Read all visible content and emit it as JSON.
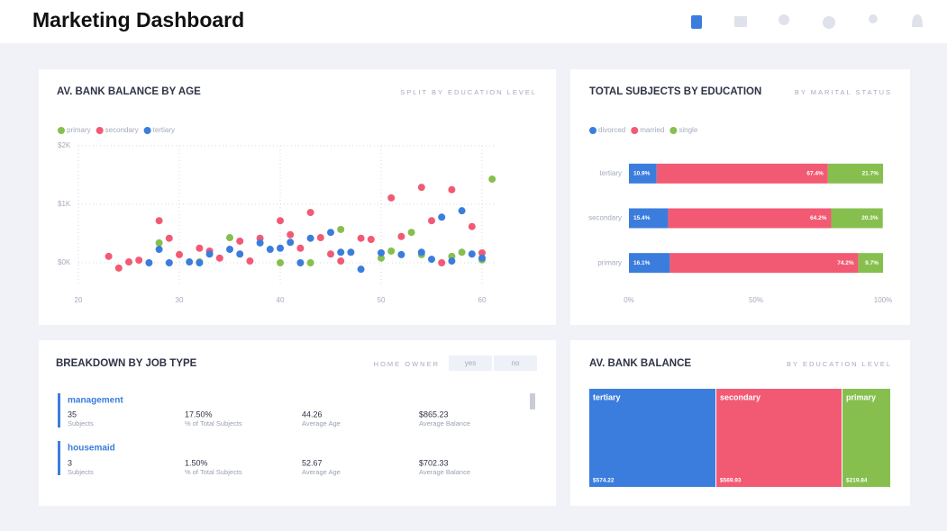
{
  "header": {
    "title": "Marketing Dashboard"
  },
  "chart_data": [
    {
      "type": "scatter",
      "title": "AV. BANK BALANCE BY AGE",
      "subtitle": "SPLIT BY EDUCATION LEVEL",
      "xlim": [
        20,
        62
      ],
      "xticks": [
        20,
        30,
        40,
        50,
        60
      ],
      "ylim": [
        -400,
        2000
      ],
      "yticks": [
        {
          "value": 0,
          "label": "$0K"
        },
        {
          "value": 1000,
          "label": "$1K"
        },
        {
          "value": 2000,
          "label": "$2K"
        }
      ],
      "grid": true,
      "legend": "top-left",
      "series": [
        {
          "name": "primary",
          "color": "#86bf4e",
          "x": [
            28,
            32,
            35,
            40,
            43,
            46,
            50,
            51,
            53,
            54,
            57,
            58,
            60,
            61
          ],
          "values": [
            340,
            15,
            430,
            0,
            0,
            570,
            80,
            200,
            520,
            140,
            110,
            180,
            50,
            1430
          ]
        },
        {
          "name": "secondary",
          "color": "#f25a74",
          "x": [
            23,
            24,
            25,
            26,
            28,
            29,
            30,
            32,
            33,
            34,
            36,
            37,
            38,
            40,
            41,
            42,
            43,
            44,
            45,
            46,
            48,
            49,
            51,
            52,
            54,
            55,
            56,
            57,
            59,
            60
          ],
          "values": [
            110,
            -90,
            15,
            45,
            720,
            420,
            140,
            250,
            200,
            80,
            370,
            30,
            420,
            720,
            480,
            250,
            860,
            430,
            150,
            30,
            420,
            400,
            1110,
            450,
            1290,
            720,
            0,
            1250,
            620,
            170
          ]
        },
        {
          "name": "tertiary",
          "color": "#3b7ddd",
          "x": [
            27,
            28,
            29,
            31,
            32,
            33,
            35,
            36,
            38,
            39,
            40,
            41,
            42,
            43,
            45,
            46,
            47,
            48,
            50,
            52,
            54,
            55,
            56,
            57,
            58,
            59,
            60
          ],
          "values": [
            0,
            230,
            0,
            15,
            0,
            150,
            230,
            150,
            340,
            230,
            250,
            350,
            0,
            420,
            520,
            180,
            180,
            -110,
            170,
            140,
            180,
            60,
            780,
            30,
            890,
            150,
            80
          ]
        }
      ]
    },
    {
      "type": "bar",
      "orientation": "horizontal",
      "stacked": true,
      "title": "TOTAL SUBJECTS BY EDUCATION",
      "subtitle": "BY MARITAL STATUS",
      "categories": [
        "tertiary",
        "secondary",
        "primary"
      ],
      "xlim": [
        0,
        100
      ],
      "xticks": [
        {
          "value": 0,
          "label": "0%"
        },
        {
          "value": 50,
          "label": "50%"
        },
        {
          "value": 100,
          "label": "100%"
        }
      ],
      "legend": "top-left",
      "series": [
        {
          "name": "divorced",
          "color": "#3b7ddd",
          "values": [
            10.9,
            15.4,
            16.1
          ],
          "value_labels": [
            "10.9%",
            "15.4%",
            "16.1%"
          ]
        },
        {
          "name": "married",
          "color": "#f25a74",
          "values": [
            67.4,
            64.2,
            74.2
          ],
          "value_labels": [
            "67.4%",
            "64.2%",
            "74.2%"
          ]
        },
        {
          "name": "single",
          "color": "#86bf4e",
          "values": [
            21.7,
            20.3,
            9.7
          ],
          "value_labels": [
            "21.7%",
            "20.3%",
            "9.7%"
          ]
        }
      ]
    },
    {
      "type": "treemap",
      "title": "AV. BANK BALANCE",
      "subtitle": "BY EDUCATION LEVEL",
      "categories": [
        "tertiary",
        "secondary",
        "primary"
      ],
      "values": [
        574.22,
        569.93,
        219.84
      ],
      "value_labels": [
        "$574.22",
        "$569.93",
        "$219.84"
      ],
      "colors": [
        "#3b7ddd",
        "#f25a74",
        "#86bf4e"
      ]
    }
  ],
  "job_panel": {
    "title": "BREAKDOWN BY JOB TYPE",
    "filter_label": "HOME OWNER",
    "filter_options": [
      "yes",
      "no"
    ],
    "items": [
      {
        "name": "management",
        "stats": [
          {
            "value": "35",
            "label": "Subjects"
          },
          {
            "value": "17.50%",
            "label": "% of Total Subjects"
          },
          {
            "value": "44.26",
            "label": "Average Age"
          },
          {
            "value": "$865.23",
            "label": "Average Balance"
          }
        ]
      },
      {
        "name": "housemaid",
        "stats": [
          {
            "value": "3",
            "label": "Subjects"
          },
          {
            "value": "1.50%",
            "label": "% of Total Subjects"
          },
          {
            "value": "52.67",
            "label": "Average Age"
          },
          {
            "value": "$702.33",
            "label": "Average Balance"
          }
        ]
      }
    ]
  }
}
